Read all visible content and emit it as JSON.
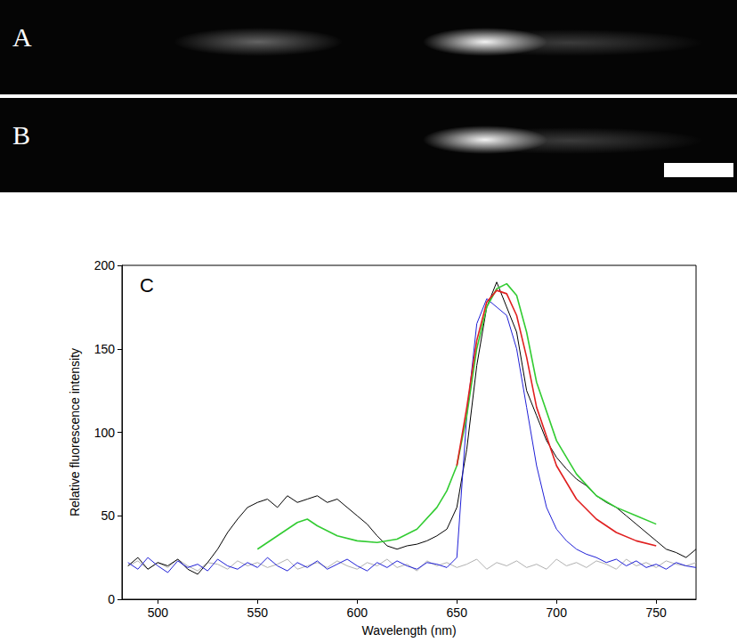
{
  "panels": [
    {
      "label": "A"
    },
    {
      "label": "B"
    }
  ],
  "chart_data": {
    "type": "line",
    "title": "C",
    "x_label": "Wavelength (nm)",
    "y_label": "Relative fluorescence intensity",
    "xlim": [
      482,
      770
    ],
    "xticks": [
      500,
      550,
      600,
      650,
      700,
      750
    ],
    "ylim": [
      0,
      200
    ],
    "yticks": [
      0,
      50,
      100,
      150,
      200
    ],
    "grid": false,
    "series": [
      {
        "color": "#b0b0b0",
        "x": [
          485,
          490,
          495,
          500,
          505,
          510,
          515,
          520,
          525,
          530,
          535,
          540,
          545,
          550,
          555,
          560,
          565,
          570,
          575,
          580,
          585,
          590,
          595,
          600,
          605,
          610,
          615,
          620,
          625,
          630,
          635,
          640,
          645,
          650,
          655,
          660,
          665,
          670,
          675,
          680,
          685,
          690,
          695,
          700,
          705,
          710,
          715,
          720,
          725,
          730,
          735,
          740,
          745,
          750,
          755,
          760,
          765,
          770
        ],
        "values": [
          20,
          23,
          18,
          22,
          19,
          24,
          20,
          17,
          22,
          21,
          18,
          23,
          20,
          22,
          19,
          21,
          24,
          18,
          20,
          22,
          19,
          23,
          20,
          18,
          22,
          20,
          24,
          19,
          21,
          17,
          23,
          20,
          22,
          19,
          21,
          24,
          18,
          22,
          20,
          23,
          19,
          21,
          18,
          24,
          20,
          22,
          19,
          23,
          21,
          18,
          24,
          20,
          22,
          19,
          23,
          21,
          20,
          22
        ]
      },
      {
        "color": "#000000",
        "x": [
          485,
          490,
          495,
          500,
          505,
          510,
          515,
          520,
          525,
          530,
          535,
          540,
          545,
          550,
          555,
          560,
          565,
          570,
          575,
          580,
          585,
          590,
          595,
          600,
          605,
          610,
          615,
          620,
          625,
          630,
          635,
          640,
          645,
          650,
          655,
          660,
          665,
          670,
          675,
          680,
          685,
          690,
          695,
          700,
          705,
          710,
          715,
          720,
          725,
          730,
          735,
          740,
          745,
          750,
          755,
          760,
          765,
          770
        ],
        "values": [
          20,
          25,
          18,
          22,
          20,
          24,
          18,
          15,
          22,
          30,
          40,
          48,
          55,
          58,
          60,
          55,
          62,
          58,
          60,
          62,
          58,
          60,
          55,
          50,
          45,
          38,
          32,
          30,
          32,
          33,
          35,
          38,
          42,
          55,
          90,
          140,
          175,
          190,
          175,
          160,
          125,
          110,
          95,
          85,
          78,
          72,
          68,
          62,
          58,
          55,
          50,
          45,
          40,
          35,
          30,
          28,
          25,
          30
        ]
      },
      {
        "color": "#1f1fd6",
        "x": [
          485,
          490,
          495,
          500,
          505,
          510,
          515,
          520,
          525,
          530,
          535,
          540,
          545,
          550,
          555,
          560,
          565,
          570,
          575,
          580,
          585,
          590,
          595,
          600,
          605,
          610,
          615,
          620,
          625,
          630,
          635,
          640,
          645,
          650,
          655,
          660,
          665,
          670,
          675,
          680,
          685,
          690,
          695,
          700,
          705,
          710,
          715,
          720,
          725,
          730,
          735,
          740,
          745,
          750,
          755,
          760,
          765,
          770
        ],
        "values": [
          22,
          18,
          25,
          20,
          16,
          23,
          19,
          21,
          17,
          24,
          20,
          18,
          22,
          19,
          25,
          20,
          17,
          22,
          19,
          23,
          18,
          21,
          24,
          20,
          17,
          22,
          19,
          23,
          20,
          18,
          22,
          21,
          19,
          25,
          110,
          165,
          180,
          175,
          170,
          150,
          115,
          80,
          55,
          42,
          35,
          30,
          27,
          25,
          22,
          24,
          20,
          23,
          19,
          21,
          18,
          22,
          20,
          19
        ]
      },
      {
        "color": "#33cc33",
        "x": [
          550,
          560,
          570,
          575,
          580,
          590,
          600,
          610,
          620,
          630,
          640,
          645,
          650,
          655,
          660,
          665,
          670,
          675,
          680,
          685,
          690,
          700,
          710,
          720,
          730,
          740,
          750
        ],
        "values": [
          30,
          38,
          46,
          48,
          44,
          38,
          35,
          34,
          36,
          42,
          55,
          65,
          80,
          110,
          150,
          175,
          186,
          189,
          182,
          160,
          130,
          95,
          75,
          62,
          55,
          50,
          45
        ]
      },
      {
        "color": "#e02020",
        "x": [
          650,
          655,
          660,
          665,
          670,
          675,
          680,
          685,
          690,
          700,
          710,
          720,
          730,
          740,
          750
        ],
        "values": [
          80,
          115,
          155,
          178,
          185,
          183,
          170,
          145,
          115,
          80,
          60,
          48,
          40,
          35,
          32
        ]
      }
    ]
  }
}
